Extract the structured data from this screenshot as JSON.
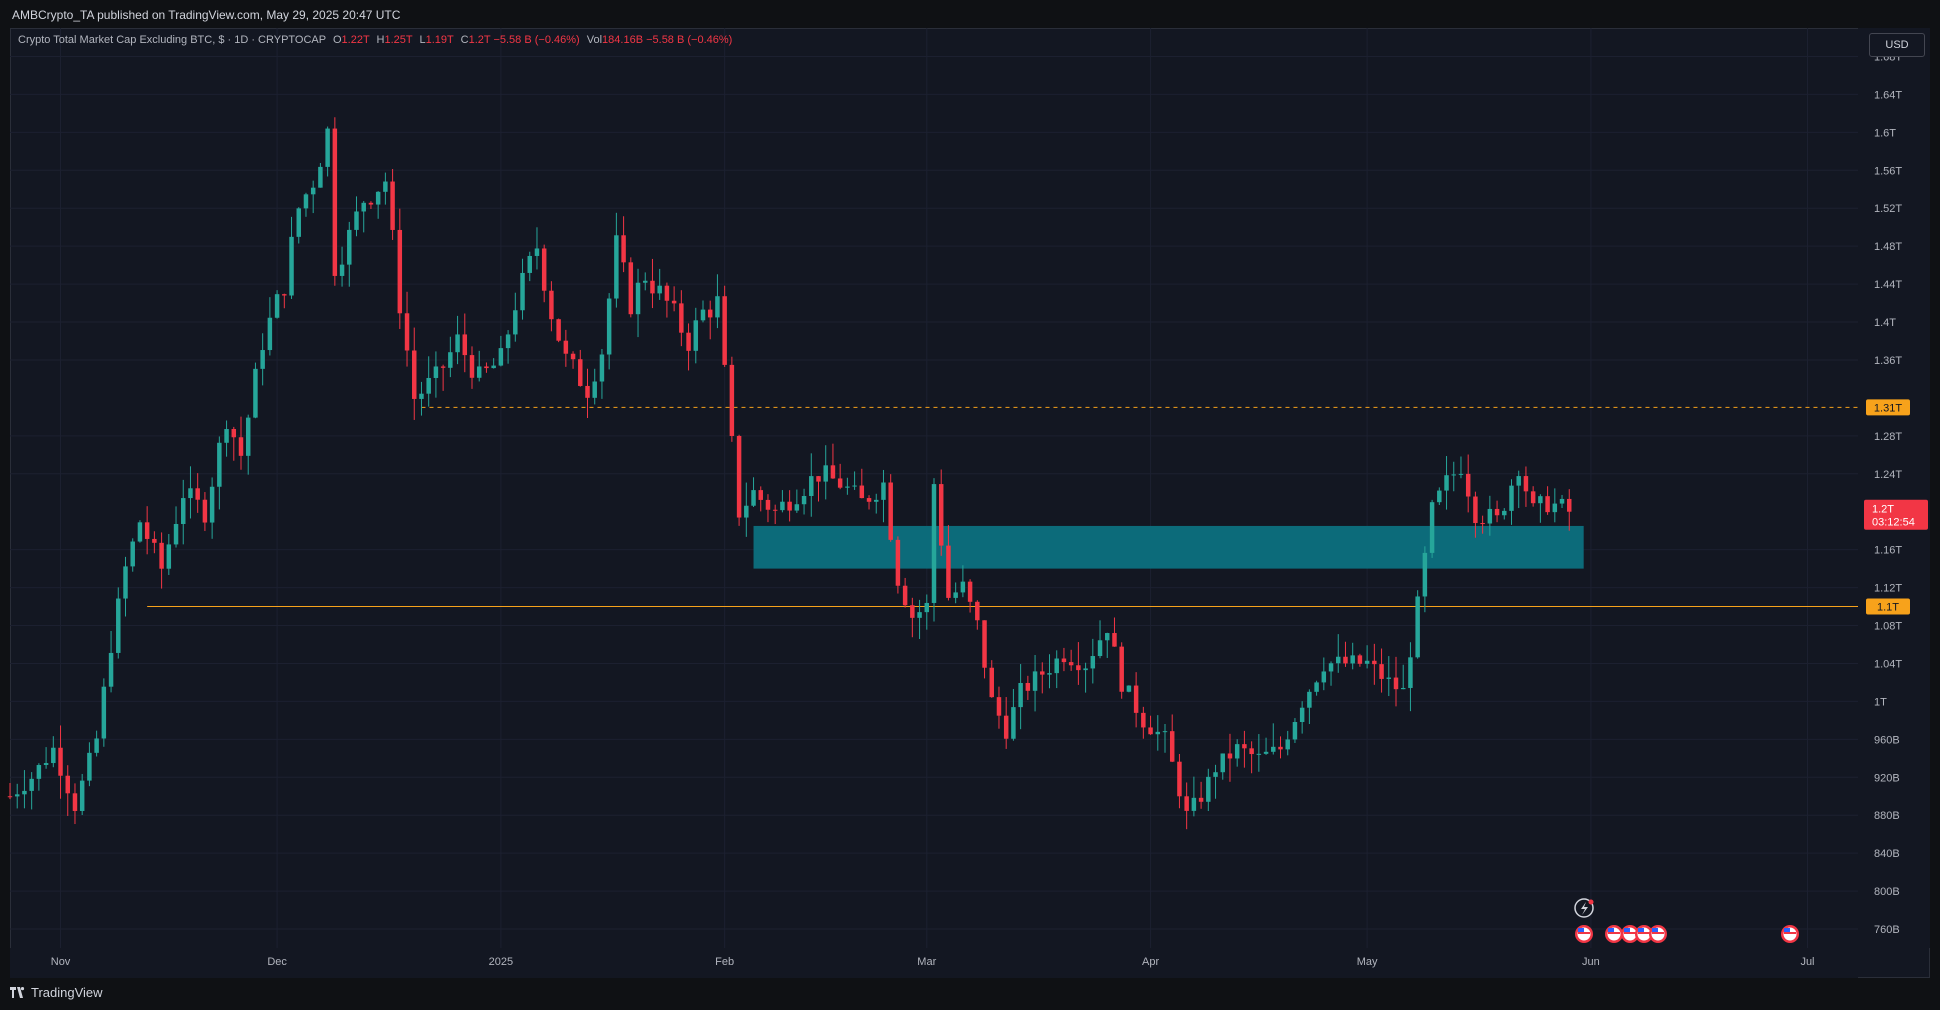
{
  "publisher": "AMBCrypto_TA published on TradingView.com, May 29, 2025 20:47 UTC",
  "legend": {
    "symbol": "Crypto Total Market Cap Excluding BTC, $ · 1D · CRYPTOCAP",
    "o_label": "O",
    "o_value": "1.22T",
    "h_label": "H",
    "h_value": "1.25T",
    "l_label": "L",
    "l_value": "1.19T",
    "c_label": "C",
    "c_value": "1.2T",
    "change": "−5.58 B (−0.46%)",
    "vol_label": "Vol",
    "vol_value": "184.16B",
    "vol_change": "−5.58 B (−0.46%)"
  },
  "currency_button": "USD",
  "brand": "TradingView",
  "colors": {
    "up": "#26a69a",
    "down": "#f23645",
    "level": "#f7a21b",
    "zone": "#0c6b7a",
    "background": "#131722"
  },
  "price_label": {
    "value": "1.2T",
    "countdown": "03:12:54"
  },
  "chart_data": {
    "type": "candlestick",
    "title": "Crypto Total Market Cap Excluding BTC, $ · 1D · CRYPTOCAP",
    "y_unit": "T",
    "ylim": [
      0.74,
      1.71
    ],
    "y_ticks": [
      {
        "value": 0.76,
        "label": "760B"
      },
      {
        "value": 0.8,
        "label": "800B"
      },
      {
        "value": 0.84,
        "label": "840B"
      },
      {
        "value": 0.88,
        "label": "880B"
      },
      {
        "value": 0.92,
        "label": "920B"
      },
      {
        "value": 0.96,
        "label": "960B"
      },
      {
        "value": 1.0,
        "label": "1T"
      },
      {
        "value": 1.04,
        "label": "1.04T"
      },
      {
        "value": 1.08,
        "label": "1.08T"
      },
      {
        "value": 1.12,
        "label": "1.12T"
      },
      {
        "value": 1.16,
        "label": "1.16T"
      },
      {
        "value": 1.24,
        "label": "1.24T"
      },
      {
        "value": 1.28,
        "label": "1.28T"
      },
      {
        "value": 1.36,
        "label": "1.36T"
      },
      {
        "value": 1.4,
        "label": "1.4T"
      },
      {
        "value": 1.44,
        "label": "1.44T"
      },
      {
        "value": 1.48,
        "label": "1.48T"
      },
      {
        "value": 1.52,
        "label": "1.52T"
      },
      {
        "value": 1.56,
        "label": "1.56T"
      },
      {
        "value": 1.6,
        "label": "1.6T"
      },
      {
        "value": 1.64,
        "label": "1.64T"
      },
      {
        "value": 1.68,
        "label": "1.68T"
      }
    ],
    "x_range": [
      "2024-10-25",
      "2025-07-08"
    ],
    "x_ticks": [
      {
        "date": "2024-11-01",
        "label": "Nov"
      },
      {
        "date": "2024-12-01",
        "label": "Dec"
      },
      {
        "date": "2025-01-01",
        "label": "2025"
      },
      {
        "date": "2025-02-01",
        "label": "Feb"
      },
      {
        "date": "2025-03-01",
        "label": "Mar"
      },
      {
        "date": "2025-04-01",
        "label": "Apr"
      },
      {
        "date": "2025-05-01",
        "label": "May"
      },
      {
        "date": "2025-06-01",
        "label": "Jun"
      },
      {
        "date": "2025-07-01",
        "label": "Jul"
      }
    ],
    "key_levels": [
      {
        "value": 1.31,
        "label": "1.31T",
        "style": "dashed",
        "start": "2024-12-21"
      },
      {
        "value": 1.1,
        "label": "1.1T",
        "style": "solid",
        "start": "2024-11-13"
      }
    ],
    "zone": {
      "low": 1.14,
      "high": 1.185,
      "start": "2025-02-05",
      "end": "2025-05-31"
    },
    "current_price": 1.2,
    "close_series": [
      {
        "date": "2024-10-25",
        "close": 0.9
      },
      {
        "date": "2024-10-28",
        "close": 0.92
      },
      {
        "date": "2024-10-31",
        "close": 0.95
      },
      {
        "date": "2024-11-03",
        "close": 0.89
      },
      {
        "date": "2024-11-06",
        "close": 0.96
      },
      {
        "date": "2024-11-08",
        "close": 1.06
      },
      {
        "date": "2024-11-10",
        "close": 1.14
      },
      {
        "date": "2024-11-12",
        "close": 1.19
      },
      {
        "date": "2024-11-15",
        "close": 1.14
      },
      {
        "date": "2024-11-18",
        "close": 1.22
      },
      {
        "date": "2024-11-21",
        "close": 1.2
      },
      {
        "date": "2024-11-24",
        "close": 1.3
      },
      {
        "date": "2024-11-26",
        "close": 1.26
      },
      {
        "date": "2024-11-29",
        "close": 1.38
      },
      {
        "date": "2024-12-02",
        "close": 1.44
      },
      {
        "date": "2024-12-04",
        "close": 1.52
      },
      {
        "date": "2024-12-06",
        "close": 1.55
      },
      {
        "date": "2024-12-08",
        "close": 1.6
      },
      {
        "date": "2024-12-09",
        "close": 1.46
      },
      {
        "date": "2024-12-11",
        "close": 1.49
      },
      {
        "date": "2024-12-13",
        "close": 1.53
      },
      {
        "date": "2024-12-16",
        "close": 1.55
      },
      {
        "date": "2024-12-18",
        "close": 1.42
      },
      {
        "date": "2024-12-20",
        "close": 1.32
      },
      {
        "date": "2024-12-23",
        "close": 1.34
      },
      {
        "date": "2024-12-26",
        "close": 1.38
      },
      {
        "date": "2024-12-29",
        "close": 1.34
      },
      {
        "date": "2025-01-01",
        "close": 1.36
      },
      {
        "date": "2025-01-03",
        "close": 1.42
      },
      {
        "date": "2025-01-06",
        "close": 1.48
      },
      {
        "date": "2025-01-08",
        "close": 1.41
      },
      {
        "date": "2025-01-10",
        "close": 1.36
      },
      {
        "date": "2025-01-13",
        "close": 1.33
      },
      {
        "date": "2025-01-15",
        "close": 1.37
      },
      {
        "date": "2025-01-17",
        "close": 1.48
      },
      {
        "date": "2025-01-19",
        "close": 1.42
      },
      {
        "date": "2025-01-21",
        "close": 1.45
      },
      {
        "date": "2025-01-24",
        "close": 1.42
      },
      {
        "date": "2025-01-27",
        "close": 1.38
      },
      {
        "date": "2025-01-29",
        "close": 1.41
      },
      {
        "date": "2025-01-31",
        "close": 1.42
      },
      {
        "date": "2025-02-02",
        "close": 1.27
      },
      {
        "date": "2025-02-03",
        "close": 1.2
      },
      {
        "date": "2025-02-05",
        "close": 1.22
      },
      {
        "date": "2025-02-08",
        "close": 1.2
      },
      {
        "date": "2025-02-11",
        "close": 1.22
      },
      {
        "date": "2025-02-14",
        "close": 1.24
      },
      {
        "date": "2025-02-17",
        "close": 1.23
      },
      {
        "date": "2025-02-20",
        "close": 1.21
      },
      {
        "date": "2025-02-23",
        "close": 1.23
      },
      {
        "date": "2025-02-25",
        "close": 1.13
      },
      {
        "date": "2025-02-27",
        "close": 1.09
      },
      {
        "date": "2025-03-01",
        "close": 1.1
      },
      {
        "date": "2025-03-02",
        "close": 1.23
      },
      {
        "date": "2025-03-04",
        "close": 1.11
      },
      {
        "date": "2025-03-06",
        "close": 1.12
      },
      {
        "date": "2025-03-08",
        "close": 1.08
      },
      {
        "date": "2025-03-10",
        "close": 1.0
      },
      {
        "date": "2025-03-12",
        "close": 0.97
      },
      {
        "date": "2025-03-14",
        "close": 1.01
      },
      {
        "date": "2025-03-17",
        "close": 1.03
      },
      {
        "date": "2025-03-20",
        "close": 1.05
      },
      {
        "date": "2025-03-23",
        "close": 1.04
      },
      {
        "date": "2025-03-26",
        "close": 1.08
      },
      {
        "date": "2025-03-28",
        "close": 1.02
      },
      {
        "date": "2025-03-31",
        "close": 0.98
      },
      {
        "date": "2025-04-03",
        "close": 0.96
      },
      {
        "date": "2025-04-06",
        "close": 0.88
      },
      {
        "date": "2025-04-08",
        "close": 0.9
      },
      {
        "date": "2025-04-10",
        "close": 0.93
      },
      {
        "date": "2025-04-13",
        "close": 0.95
      },
      {
        "date": "2025-04-16",
        "close": 0.94
      },
      {
        "date": "2025-04-19",
        "close": 0.95
      },
      {
        "date": "2025-04-22",
        "close": 1.0
      },
      {
        "date": "2025-04-25",
        "close": 1.04
      },
      {
        "date": "2025-04-28",
        "close": 1.04
      },
      {
        "date": "2025-05-01",
        "close": 1.04
      },
      {
        "date": "2025-05-04",
        "close": 1.02
      },
      {
        "date": "2025-05-06",
        "close": 1.01
      },
      {
        "date": "2025-05-08",
        "close": 1.1
      },
      {
        "date": "2025-05-10",
        "close": 1.2
      },
      {
        "date": "2025-05-12",
        "close": 1.23
      },
      {
        "date": "2025-05-14",
        "close": 1.25
      },
      {
        "date": "2025-05-16",
        "close": 1.2
      },
      {
        "date": "2025-05-19",
        "close": 1.19
      },
      {
        "date": "2025-05-22",
        "close": 1.25
      },
      {
        "date": "2025-05-24",
        "close": 1.2
      },
      {
        "date": "2025-05-26",
        "close": 1.21
      },
      {
        "date": "2025-05-29",
        "close": 1.2
      }
    ]
  }
}
